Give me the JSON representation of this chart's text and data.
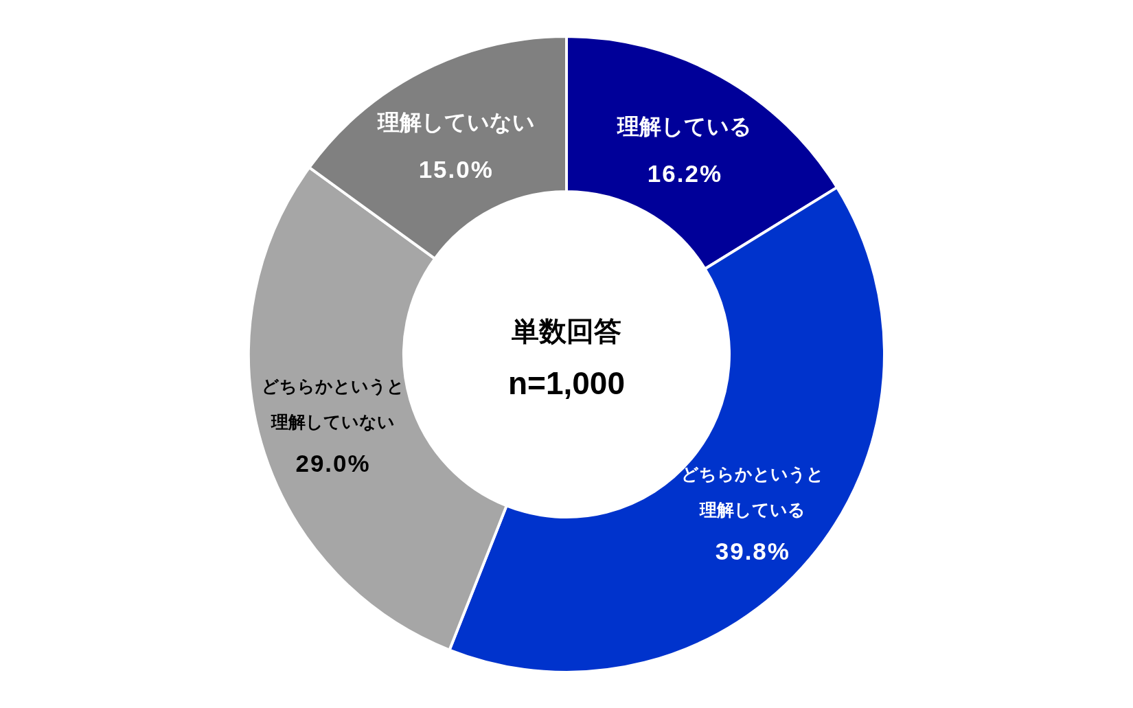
{
  "chart_data": {
    "type": "donut",
    "categories": [
      "理解している",
      "どちらかというと理解している",
      "どちらかというと理解していない",
      "理解していない"
    ],
    "values": [
      16.2,
      39.8,
      29.0,
      15.0
    ],
    "colors": [
      "#000099",
      "#0033cc",
      "#a6a6a6",
      "#808080"
    ],
    "value_labels": [
      "16.2%",
      "39.8%",
      "29.0%",
      "15.0%"
    ],
    "annotations": [
      "単数回答",
      "n=1,000"
    ]
  }
}
